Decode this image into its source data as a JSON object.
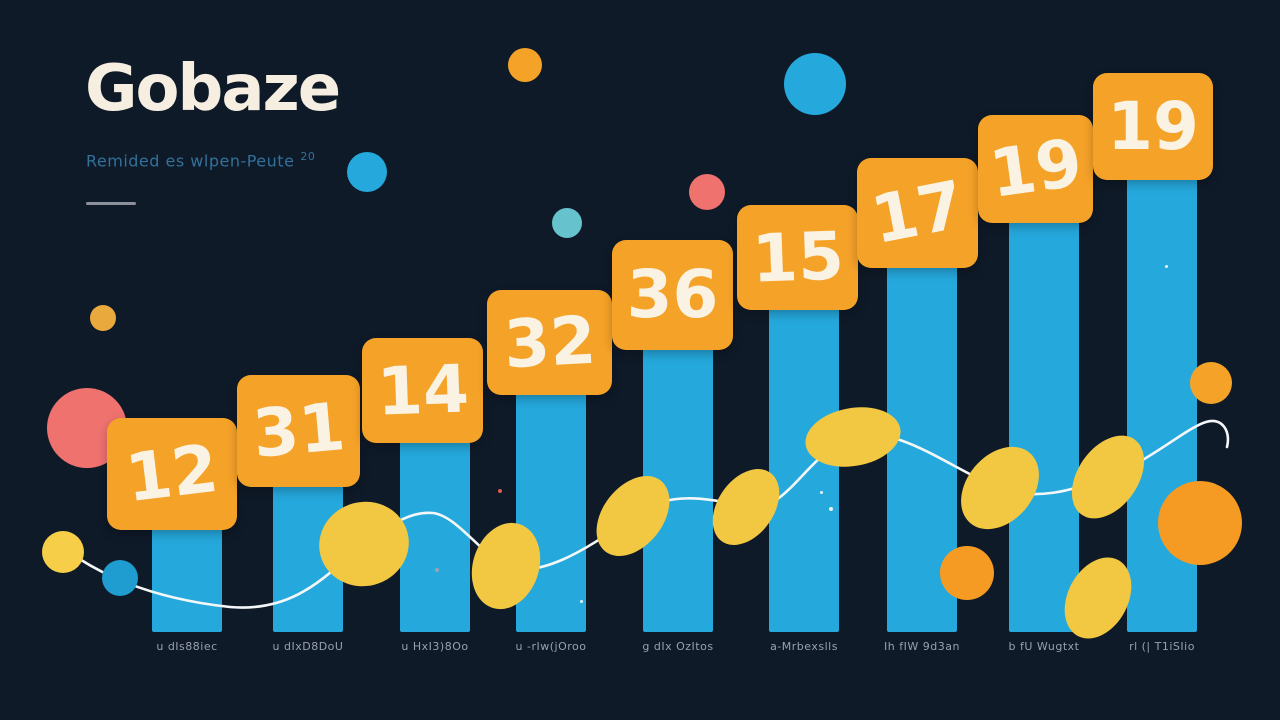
{
  "header": {
    "title": "Gobaze",
    "subtitle": "Remided es wlpen-Peute",
    "subtitle_sup": "20"
  },
  "chart_data": {
    "type": "bar",
    "title": "Gobaze",
    "subtitle": "Remided es wlpen-Peute 20",
    "categories": [
      "u dIs88iec",
      "u dIxD8DoU",
      "u HxI3)8Oo",
      "u -rIw(jOroo",
      "g dIx OzItos",
      "a-Mrbexslls",
      "Ih fIW 9d3an",
      "b fU Wugtxt",
      "rl (| T1iSIio"
    ],
    "values": [
      12,
      31,
      14,
      32,
      36,
      15,
      17,
      19,
      19
    ],
    "xlabel": "",
    "ylabel": "",
    "grid": false,
    "legend_position": "none",
    "bar_color": "#25A8DC",
    "value_badge_color": "#F5A228"
  },
  "colors": {
    "background": "#0F1A28",
    "bar": "#25A8DC",
    "badge": "#F5A228",
    "badge_text": "#FAF3E3",
    "title_text": "#F6EFE1",
    "subtitle_text": "#31719A",
    "underline": "#8A8F99",
    "axis_label": "#98A0AE",
    "curve": "#F4F7F8",
    "yellow": "#F2C843",
    "yellow_bright": "#F6CE48",
    "orange": "#F59A23",
    "orange_light": "#F5A228",
    "orange_muted": "#E9A93C",
    "pink": "#F0726F",
    "teal": "#66C2CC",
    "blue": "#25A8DC",
    "blue_deep": "#1F9CD0",
    "speck_red": "#E05C4F",
    "speck_white": "#EAF2F5",
    "speck_gray": "#9AA4AE"
  }
}
